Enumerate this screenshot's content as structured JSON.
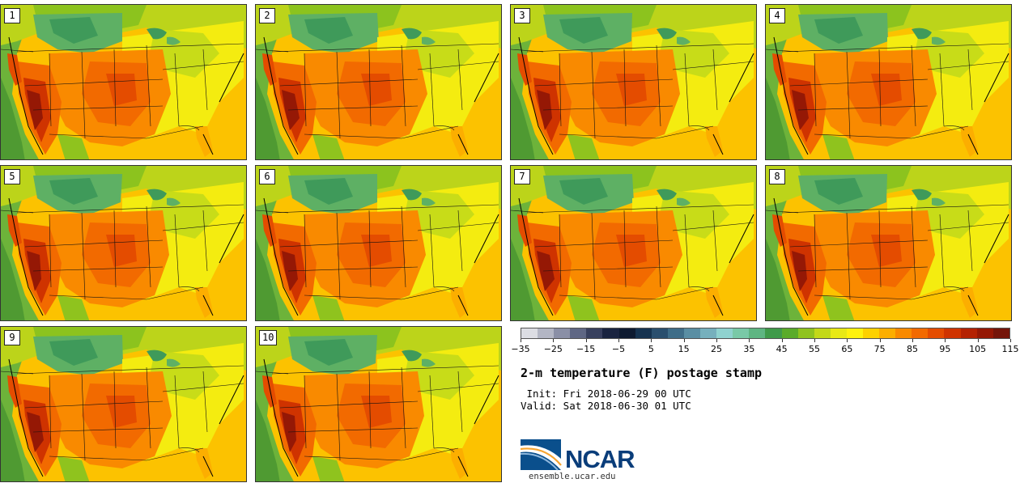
{
  "product": {
    "title": "2-m temperature (F) postage stamp",
    "init": " Init: Fri 2018-06-29 00 UTC",
    "valid": "Valid: Sat 2018-06-30 01 UTC",
    "url": "ensemble.ucar.edu",
    "logo_text": "NCAR"
  },
  "members": [
    "1",
    "2",
    "3",
    "4",
    "5",
    "6",
    "7",
    "8",
    "9",
    "10"
  ],
  "colorbar": {
    "colors": [
      "#dcdde3",
      "#b3b6c4",
      "#8a8fa6",
      "#5f6784",
      "#38405e",
      "#1a2440",
      "#0e1a30",
      "#163350",
      "#2a4f6e",
      "#3f6d88",
      "#5a8ea3",
      "#76b0bd",
      "#8fd2cf",
      "#79c9a7",
      "#5eb582",
      "#3f9a4a",
      "#5aab2a",
      "#8fc31e",
      "#c3d818",
      "#e8e915",
      "#fef20e",
      "#fdd100",
      "#fcae00",
      "#f98a00",
      "#f26a00",
      "#e44c00",
      "#cf3300",
      "#b42203",
      "#951805",
      "#74150a"
    ],
    "tick_labels": [
      "−35",
      "−25",
      "−15",
      "−5",
      "5",
      "15",
      "25",
      "35",
      "45",
      "55",
      "65",
      "75",
      "85",
      "95",
      "105",
      "115"
    ]
  }
}
